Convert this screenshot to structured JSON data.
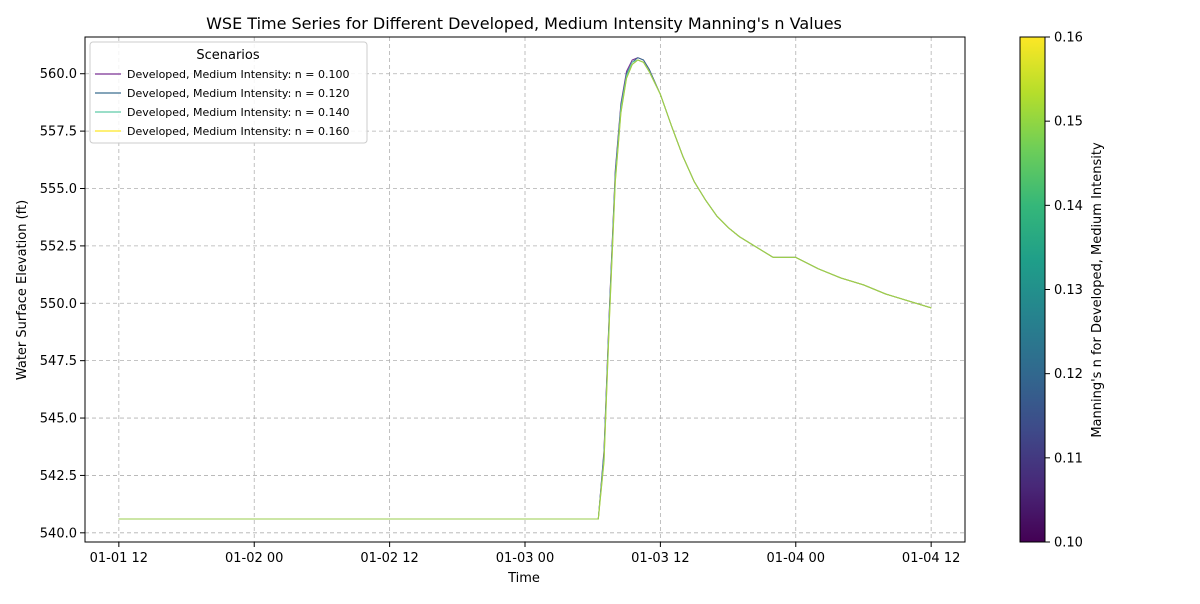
{
  "chart_data": {
    "type": "line",
    "title": "WSE Time Series for Different Developed, Medium Intensity Manning's n Values",
    "xlabel": "Time",
    "ylabel": "Water Surface Elevation (ft)",
    "x_range": [
      "2023-01-01 09:00",
      "2023-01-04 15:00"
    ],
    "x_ticks": [
      {
        "x": "2023-01-01 12:00",
        "label": "01-01 12"
      },
      {
        "x": "2023-01-02 00:00",
        "label": "01-02 00"
      },
      {
        "x": "2023-01-02 12:00",
        "label": "01-02 12"
      },
      {
        "x": "2023-01-03 00:00",
        "label": "01-03 00"
      },
      {
        "x": "2023-01-03 12:00",
        "label": "01-03 12"
      },
      {
        "x": "2023-01-04 00:00",
        "label": "01-04 00"
      },
      {
        "x": "2023-01-04 12:00",
        "label": "01-04 12"
      }
    ],
    "ylim": [
      539.6,
      561.6
    ],
    "y_ticks": [
      540.0,
      542.5,
      545.0,
      547.5,
      550.0,
      552.5,
      555.0,
      557.5,
      560.0
    ],
    "grid": true,
    "legend": {
      "title": "Scenarios",
      "position": "top-left"
    },
    "x": [
      "2023-01-01 12:00",
      "2023-01-02 00:00",
      "2023-01-02 12:00",
      "2023-01-03 00:00",
      "2023-01-03 06:00",
      "2023-01-03 06:30",
      "2023-01-03 07:00",
      "2023-01-03 07:30",
      "2023-01-03 08:00",
      "2023-01-03 08:30",
      "2023-01-03 09:00",
      "2023-01-03 09:30",
      "2023-01-03 10:00",
      "2023-01-03 10:30",
      "2023-01-03 11:00",
      "2023-01-03 12:00",
      "2023-01-03 13:00",
      "2023-01-03 14:00",
      "2023-01-03 15:00",
      "2023-01-03 16:00",
      "2023-01-03 17:00",
      "2023-01-03 18:00",
      "2023-01-03 19:00",
      "2023-01-03 20:00",
      "2023-01-03 21:00",
      "2023-01-03 22:00",
      "2023-01-04 00:00",
      "2023-01-04 02:00",
      "2023-01-04 04:00",
      "2023-01-04 06:00",
      "2023-01-04 08:00",
      "2023-01-04 10:00",
      "2023-01-04 12:00"
    ],
    "series": [
      {
        "name": "Developed, Medium Intensity: n = 0.100",
        "color": "#7b3294",
        "values": [
          540.6,
          540.6,
          540.6,
          540.6,
          540.6,
          540.6,
          543.6,
          550.0,
          555.8,
          558.7,
          560.1,
          560.6,
          560.7,
          560.6,
          560.2,
          559.1,
          557.7,
          556.4,
          555.3,
          554.5,
          553.8,
          553.3,
          552.9,
          552.6,
          552.3,
          552.0,
          552.0,
          551.5,
          551.1,
          550.8,
          550.4,
          550.1,
          549.8
        ]
      },
      {
        "name": "Developed, Medium Intensity: n = 0.120",
        "color": "#3b6e8f",
        "values": [
          540.6,
          540.6,
          540.6,
          540.6,
          540.6,
          540.6,
          543.5,
          549.9,
          555.7,
          558.6,
          560.0,
          560.5,
          560.7,
          560.6,
          560.2,
          559.1,
          557.7,
          556.4,
          555.3,
          554.5,
          553.8,
          553.3,
          552.9,
          552.6,
          552.3,
          552.0,
          552.0,
          551.5,
          551.1,
          550.8,
          550.4,
          550.1,
          549.8
        ]
      },
      {
        "name": "Developed, Medium Intensity: n = 0.140",
        "color": "#5ec9a8",
        "values": [
          540.6,
          540.6,
          540.6,
          540.6,
          540.6,
          540.6,
          543.3,
          549.7,
          555.5,
          558.5,
          559.9,
          560.5,
          560.6,
          560.5,
          560.1,
          559.1,
          557.7,
          556.4,
          555.3,
          554.5,
          553.8,
          553.3,
          552.9,
          552.6,
          552.3,
          552.0,
          552.0,
          551.5,
          551.1,
          550.8,
          550.4,
          550.1,
          549.8
        ]
      },
      {
        "name": "Developed, Medium Intensity: n = 0.160",
        "color": "#fde725",
        "values": [
          540.6,
          540.6,
          540.6,
          540.6,
          540.6,
          540.6,
          543.1,
          549.5,
          555.3,
          558.3,
          559.8,
          560.4,
          560.6,
          560.5,
          560.1,
          559.1,
          557.7,
          556.4,
          555.3,
          554.5,
          553.8,
          553.3,
          552.9,
          552.6,
          552.3,
          552.0,
          552.0,
          551.5,
          551.1,
          550.8,
          550.4,
          550.1,
          549.8
        ]
      }
    ],
    "top_line_color": "#9acd4e",
    "colorbar": {
      "label": "Manning's n for Developed, Medium Intensity",
      "range": [
        0.1,
        0.16
      ],
      "ticks": [
        0.1,
        0.11,
        0.12,
        0.13,
        0.14,
        0.15,
        0.16
      ],
      "tick_labels": [
        "0.10",
        "0.11",
        "0.12",
        "0.13",
        "0.14",
        "0.15",
        "0.16"
      ],
      "colormap": [
        "#440154",
        "#482878",
        "#3e4a89",
        "#31688e",
        "#26828e",
        "#1f9e89",
        "#35b779",
        "#6ece58",
        "#b5de2b",
        "#fde725"
      ]
    }
  }
}
